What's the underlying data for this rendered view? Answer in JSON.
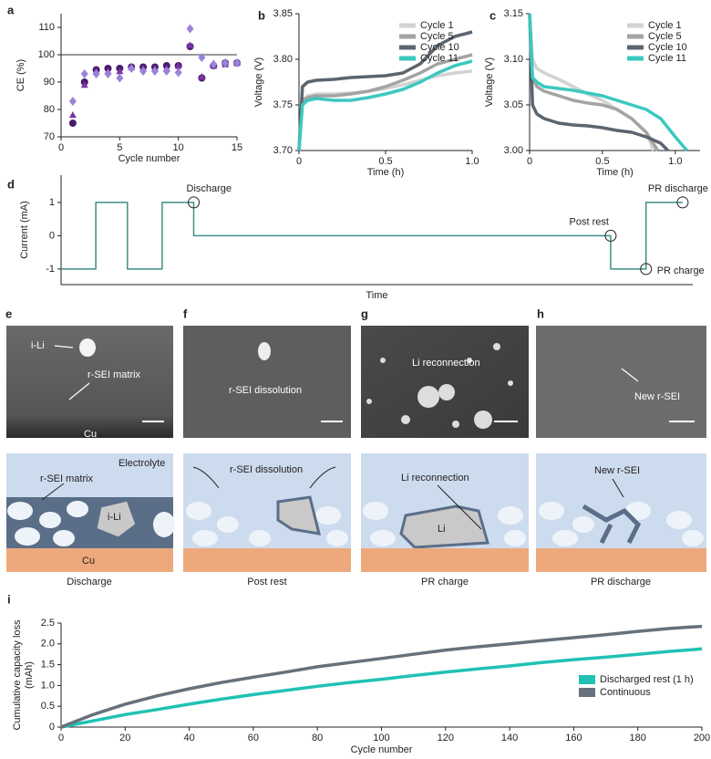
{
  "chart_data": [
    {
      "type": "scatter",
      "panel": "a",
      "xlabel": "Cycle number",
      "ylabel": "CE (%)",
      "x": [
        1,
        2,
        3,
        4,
        5,
        6,
        7,
        8,
        9,
        10,
        11,
        12,
        13,
        14,
        15
      ],
      "series": [
        {
          "color": "#4a1c6b",
          "marker": "circle",
          "values": [
            75,
            90,
            94.5,
            95,
            95,
            95.5,
            95.5,
            95.5,
            96,
            96,
            103,
            91.5,
            96,
            97,
            97
          ]
        },
        {
          "color": "#7a35a6",
          "marker": "triangle",
          "values": [
            78,
            89,
            94,
            94,
            94,
            95.5,
            95,
            95,
            95,
            96,
            103.5,
            92,
            96,
            96.5,
            97
          ]
        },
        {
          "color": "#9a82d8",
          "marker": "diamond",
          "values": [
            83,
            93,
            93,
            93,
            91.5,
            95,
            94,
            94,
            94,
            93.5,
            109.5,
            99,
            96.5,
            97,
            97
          ]
        }
      ],
      "reference_line": 100,
      "xlim": [
        0,
        15
      ],
      "xticks": [
        0,
        5,
        10,
        15
      ],
      "ylim": [
        70,
        115
      ],
      "yticks": [
        70,
        80,
        90,
        100,
        110
      ]
    },
    {
      "type": "line",
      "panel": "b",
      "xlabel": "Time (h)",
      "ylabel": "Voltage (V)",
      "legend": "upper right",
      "x": [
        0,
        0.02,
        0.05,
        0.1,
        0.2,
        0.3,
        0.4,
        0.5,
        0.6,
        0.7,
        0.8,
        0.9,
        1.0
      ],
      "series": [
        {
          "name": "Cycle 1",
          "color": "#d2d2d2",
          "values": [
            3.7,
            3.755,
            3.76,
            3.762,
            3.762,
            3.763,
            3.765,
            3.768,
            3.772,
            3.777,
            3.782,
            3.785,
            3.787
          ]
        },
        {
          "name": "Cycle 5",
          "color": "#a3a3a3",
          "values": [
            3.7,
            3.755,
            3.758,
            3.76,
            3.76,
            3.762,
            3.765,
            3.77,
            3.777,
            3.785,
            3.795,
            3.8,
            3.805
          ]
        },
        {
          "name": "Cycle 10",
          "color": "#5b6570",
          "values": [
            3.7,
            3.77,
            3.775,
            3.777,
            3.778,
            3.78,
            3.781,
            3.782,
            3.785,
            3.795,
            3.815,
            3.825,
            3.83
          ]
        },
        {
          "name": "Cycle 11",
          "color": "#3cc8c0",
          "values": [
            3.7,
            3.75,
            3.755,
            3.757,
            3.755,
            3.755,
            3.758,
            3.762,
            3.767,
            3.775,
            3.785,
            3.793,
            3.798
          ]
        }
      ],
      "xlim": [
        0,
        1
      ],
      "xticks": [
        0,
        0.5,
        {
          "value": 1,
          "label": "1.0"
        }
      ],
      "ylim": [
        3.7,
        3.85
      ],
      "yticks": [
        {
          "value": 3.7,
          "label": "3.70"
        },
        3.75,
        {
          "value": 3.8,
          "label": "3.80"
        },
        3.85
      ]
    },
    {
      "type": "line",
      "panel": "c",
      "xlabel": "Time (h)",
      "ylabel": "Voltage (V)",
      "legend": "upper right",
      "series": [
        {
          "name": "Cycle 1",
          "color": "#d2d2d2",
          "x": [
            0,
            0.02,
            0.05,
            0.1,
            0.2,
            0.3,
            0.4,
            0.5,
            0.6,
            0.7,
            0.8,
            0.85
          ],
          "values": [
            3.15,
            3.1,
            3.09,
            3.085,
            3.078,
            3.07,
            3.062,
            3.055,
            3.045,
            3.035,
            3.02,
            3.0
          ]
        },
        {
          "name": "Cycle 5",
          "color": "#a3a3a3",
          "x": [
            0,
            0.02,
            0.05,
            0.1,
            0.2,
            0.3,
            0.4,
            0.5,
            0.6,
            0.7,
            0.8,
            0.88
          ],
          "values": [
            3.15,
            3.08,
            3.07,
            3.065,
            3.06,
            3.055,
            3.052,
            3.05,
            3.045,
            3.035,
            3.02,
            3.0
          ]
        },
        {
          "name": "Cycle 10",
          "color": "#5b6570",
          "x": [
            0,
            0.02,
            0.05,
            0.1,
            0.2,
            0.3,
            0.4,
            0.5,
            0.6,
            0.7,
            0.8,
            0.9,
            0.95
          ],
          "values": [
            3.15,
            3.05,
            3.04,
            3.035,
            3.03,
            3.028,
            3.027,
            3.025,
            3.022,
            3.02,
            3.015,
            3.008,
            3.0
          ]
        },
        {
          "name": "Cycle 11",
          "color": "#3cc8c0",
          "x": [
            0,
            0.02,
            0.05,
            0.1,
            0.2,
            0.3,
            0.4,
            0.5,
            0.6,
            0.7,
            0.8,
            0.9,
            1.0,
            1.08
          ],
          "values": [
            3.15,
            3.08,
            3.075,
            3.07,
            3.068,
            3.066,
            3.063,
            3.06,
            3.055,
            3.05,
            3.045,
            3.035,
            3.015,
            3.0
          ]
        }
      ],
      "xlim": [
        0,
        1.17
      ],
      "xticks": [
        0,
        0.5,
        {
          "value": 1,
          "label": "1.0"
        }
      ],
      "ylim": [
        3.0,
        3.15
      ],
      "yticks": [
        {
          "value": 3.0,
          "label": "3.00"
        },
        3.05,
        {
          "value": 3.1,
          "label": "3.10"
        },
        3.15
      ]
    },
    {
      "type": "line",
      "panel": "d",
      "xlabel": "Time",
      "ylabel": "Current (mA)",
      "series": [
        {
          "color": "#3f8f86",
          "x": [
            0,
            5.5,
            5.5,
            10.5,
            10.5,
            16,
            16,
            21,
            21,
            87,
            87,
            92.6,
            92.6,
            98.4
          ],
          "values": [
            -1,
            -1,
            1,
            1,
            -1,
            -1,
            1,
            1,
            0,
            0,
            -1,
            -1,
            1,
            1
          ]
        }
      ],
      "annotations": [
        {
          "text": "Discharge",
          "x": 21,
          "y": 1
        },
        {
          "text": "Post rest",
          "x": 87,
          "y": 0
        },
        {
          "text": "PR charge",
          "x": 92.6,
          "y": -1
        },
        {
          "text": "PR discharge",
          "x": 98.4,
          "y": 1
        }
      ],
      "xlim": [
        0,
        100
      ],
      "ylim": [
        -1.47,
        1.82
      ],
      "yticks": [
        -1,
        0,
        1
      ]
    },
    {
      "type": "line",
      "panel": "i",
      "xlabel": "Cycle number",
      "ylabel": [
        "Cumulative capacity loss",
        "(mAh)"
      ],
      "legend": "lower right",
      "x": [
        0,
        10,
        20,
        30,
        40,
        50,
        60,
        70,
        80,
        90,
        100,
        110,
        120,
        130,
        140,
        150,
        160,
        170,
        180,
        190,
        200
      ],
      "series": [
        {
          "name": "Discharged rest (1 h)",
          "color": "#20c2b4",
          "values": [
            0,
            0.15,
            0.3,
            0.42,
            0.55,
            0.67,
            0.78,
            0.88,
            0.98,
            1.07,
            1.15,
            1.24,
            1.32,
            1.4,
            1.47,
            1.55,
            1.62,
            1.68,
            1.75,
            1.82,
            1.88
          ]
        },
        {
          "name": "Continuous",
          "color": "#66717c",
          "values": [
            0,
            0.3,
            0.55,
            0.75,
            0.92,
            1.07,
            1.2,
            1.32,
            1.45,
            1.55,
            1.65,
            1.75,
            1.85,
            1.93,
            2.0,
            2.08,
            2.15,
            2.22,
            2.3,
            2.37,
            2.42
          ]
        }
      ],
      "xlim": [
        0,
        200
      ],
      "xticks": [
        0,
        20,
        40,
        60,
        80,
        100,
        120,
        140,
        160,
        180,
        200
      ],
      "ylim": [
        0,
        2.5
      ],
      "yticks": [
        0,
        0.5,
        {
          "value": 1,
          "label": "1.0"
        },
        1.5,
        {
          "value": 2,
          "label": "2.0"
        },
        2.5
      ]
    }
  ],
  "micrographs": [
    {
      "panel": "e",
      "labels": [
        "i-Li",
        "r-SEI matrix",
        "Cu"
      ]
    },
    {
      "panel": "f",
      "labels": [
        "r-SEI dissolution"
      ]
    },
    {
      "panel": "g",
      "labels": [
        "Li reconnection"
      ]
    },
    {
      "panel": "h",
      "labels": [
        "New r-SEI"
      ]
    }
  ],
  "schematics": [
    {
      "labels": [
        "Electrolyte",
        "r-SEI matrix",
        "i-Li",
        "Cu"
      ],
      "caption": "Discharge"
    },
    {
      "labels": [
        "r-SEI dissolution"
      ],
      "caption": "Post rest"
    },
    {
      "labels": [
        "Li reconnection",
        "Li"
      ],
      "caption": "PR charge"
    },
    {
      "labels": [
        "New r-SEI"
      ],
      "caption": "PR discharge"
    }
  ]
}
